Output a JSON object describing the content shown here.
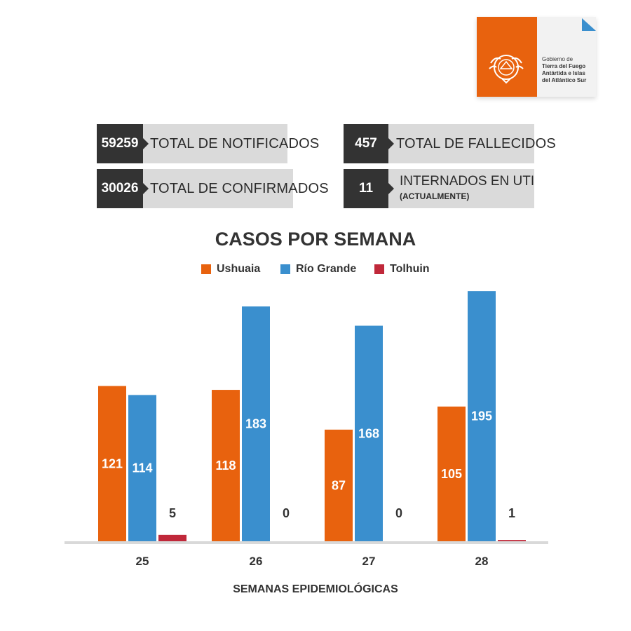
{
  "logo": {
    "line1": "Gobierno de",
    "line2": "Tierra del Fuego",
    "line3": "Antártida e Islas",
    "line4": "del Atlántico Sur"
  },
  "stats": {
    "notificados": {
      "value": "59259",
      "label": "TOTAL DE NOTIFICADOS"
    },
    "confirmados": {
      "value": "30026",
      "label": "TOTAL DE CONFIRMADOS"
    },
    "fallecidos": {
      "value": "457",
      "label": "TOTAL DE FALLECIDOS"
    },
    "uti": {
      "value": "11",
      "label": "INTERNADOS EN UTI",
      "sublabel": "(ACTUALMENTE)"
    }
  },
  "colors": {
    "ushuaia": "#e8620e",
    "rio_grande": "#3a8fce",
    "tolhuin": "#c0283a",
    "stat_dark": "#333333",
    "stat_light": "#dadada",
    "axis": "#d9d9d9"
  },
  "chart_data": {
    "type": "bar",
    "title": "CASOS POR SEMANA",
    "xlabel": "SEMANAS EPIDEMIOLÓGICAS",
    "ylabel": "",
    "categories": [
      "25",
      "26",
      "27",
      "28"
    ],
    "series": [
      {
        "name": "Ushuaia",
        "values": [
          121,
          118,
          87,
          105
        ]
      },
      {
        "name": "Río Grande",
        "values": [
          114,
          183,
          168,
          195
        ]
      },
      {
        "name": "Tolhuin",
        "values": [
          5,
          0,
          0,
          1
        ]
      }
    ],
    "ylim": [
      0,
      200
    ],
    "grid": false,
    "legend": "top-center",
    "data_labels": true
  }
}
